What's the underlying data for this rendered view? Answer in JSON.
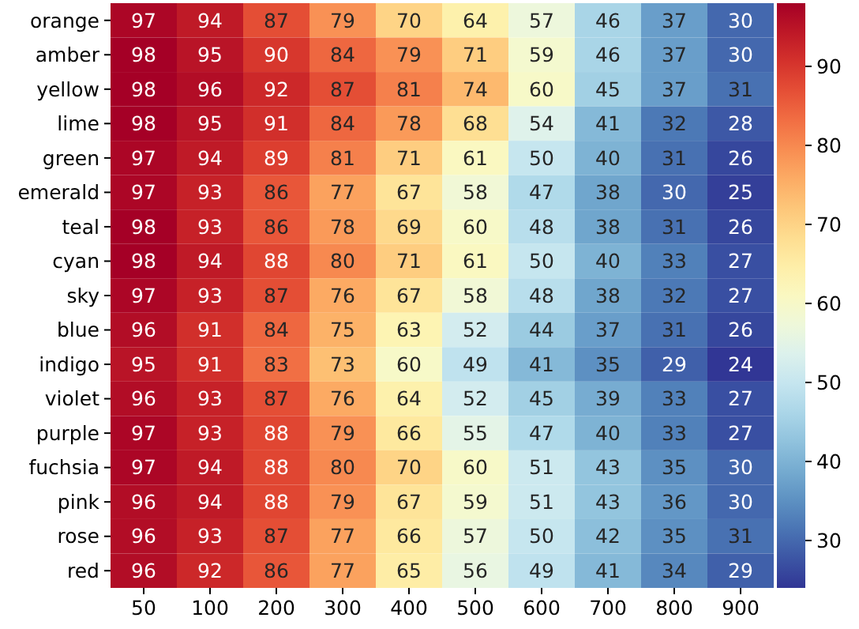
{
  "chart_data": {
    "type": "heatmap",
    "categories": [
      "50",
      "100",
      "200",
      "300",
      "400",
      "500",
      "600",
      "700",
      "800",
      "900"
    ],
    "y_categories": [
      "orange",
      "amber",
      "yellow",
      "lime",
      "green",
      "emerald",
      "teal",
      "cyan",
      "sky",
      "blue",
      "indigo",
      "violet",
      "purple",
      "fuchsia",
      "pink",
      "rose",
      "red"
    ],
    "cells": [
      [
        97,
        94,
        87,
        79,
        70,
        64,
        57,
        46,
        37,
        30
      ],
      [
        98,
        95,
        90,
        84,
        79,
        71,
        59,
        46,
        37,
        30
      ],
      [
        98,
        96,
        92,
        87,
        81,
        74,
        60,
        45,
        37,
        31
      ],
      [
        98,
        95,
        91,
        84,
        78,
        68,
        54,
        41,
        32,
        28
      ],
      [
        97,
        94,
        89,
        81,
        71,
        61,
        50,
        40,
        31,
        26
      ],
      [
        97,
        93,
        86,
        77,
        67,
        58,
        47,
        38,
        30,
        25
      ],
      [
        98,
        93,
        86,
        78,
        69,
        60,
        48,
        38,
        31,
        26
      ],
      [
        98,
        94,
        88,
        80,
        71,
        61,
        50,
        40,
        33,
        27
      ],
      [
        97,
        93,
        87,
        76,
        67,
        58,
        48,
        38,
        32,
        27
      ],
      [
        96,
        91,
        84,
        75,
        63,
        52,
        44,
        37,
        31,
        26
      ],
      [
        95,
        91,
        83,
        73,
        60,
        49,
        41,
        35,
        29,
        24
      ],
      [
        96,
        93,
        87,
        76,
        64,
        52,
        45,
        39,
        33,
        27
      ],
      [
        97,
        93,
        88,
        79,
        66,
        55,
        47,
        40,
        33,
        27
      ],
      [
        97,
        94,
        88,
        80,
        70,
        60,
        51,
        43,
        35,
        30
      ],
      [
        96,
        94,
        88,
        79,
        67,
        59,
        51,
        43,
        36,
        30
      ],
      [
        96,
        93,
        87,
        77,
        66,
        57,
        50,
        42,
        35,
        31
      ],
      [
        96,
        92,
        86,
        77,
        65,
        56,
        49,
        41,
        34,
        29
      ]
    ],
    "clim": [
      24,
      98
    ],
    "cticks": [
      30,
      40,
      50,
      60,
      70,
      80,
      90
    ],
    "data_labels": true
  }
}
